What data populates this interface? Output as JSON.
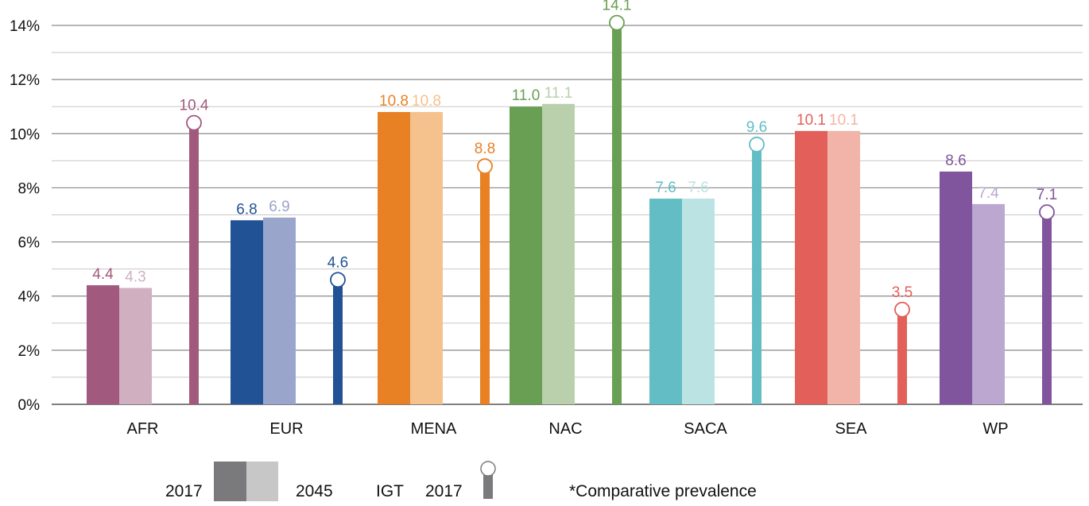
{
  "chart_data": {
    "type": "bar",
    "categories": [
      "AFR",
      "EUR",
      "MENA",
      "NAC",
      "SACA",
      "SEA",
      "WP"
    ],
    "series": [
      {
        "name": "2017",
        "values": [
          4.4,
          6.8,
          10.8,
          11.0,
          7.6,
          10.1,
          8.6
        ]
      },
      {
        "name": "2045",
        "values": [
          4.3,
          6.9,
          10.8,
          11.1,
          7.6,
          10.1,
          7.4
        ]
      },
      {
        "name": "IGT 2017",
        "values": [
          10.4,
          4.6,
          8.8,
          14.1,
          9.6,
          3.5,
          7.1
        ]
      }
    ],
    "y_ticks": [
      "0%",
      "2%",
      "4%",
      "6%",
      "8%",
      "10%",
      "12%",
      "14%"
    ],
    "ylim": [
      0,
      14
    ],
    "grid": true,
    "legend": {
      "position": "bottom",
      "labels": [
        "2017",
        "2045",
        "IGT",
        "2017"
      ],
      "note": "*Comparative prevalence"
    },
    "colors": {
      "AFR": {
        "dark": "#a15a7e",
        "light": "#d0afc1"
      },
      "EUR": {
        "dark": "#215295",
        "light": "#9aa5cb"
      },
      "MENA": {
        "dark": "#e88124",
        "light": "#f5c18c"
      },
      "NAC": {
        "dark": "#699f52",
        "light": "#bacfac"
      },
      "SACA": {
        "dark": "#62bec4",
        "light": "#bbe3e3"
      },
      "SEA": {
        "dark": "#e35f5a",
        "light": "#f2b4a8"
      },
      "WP": {
        "dark": "#81559d",
        "light": "#bba7d0"
      },
      "legend_dark": "#7a7a7c",
      "legend_light": "#c7c7c7"
    }
  }
}
